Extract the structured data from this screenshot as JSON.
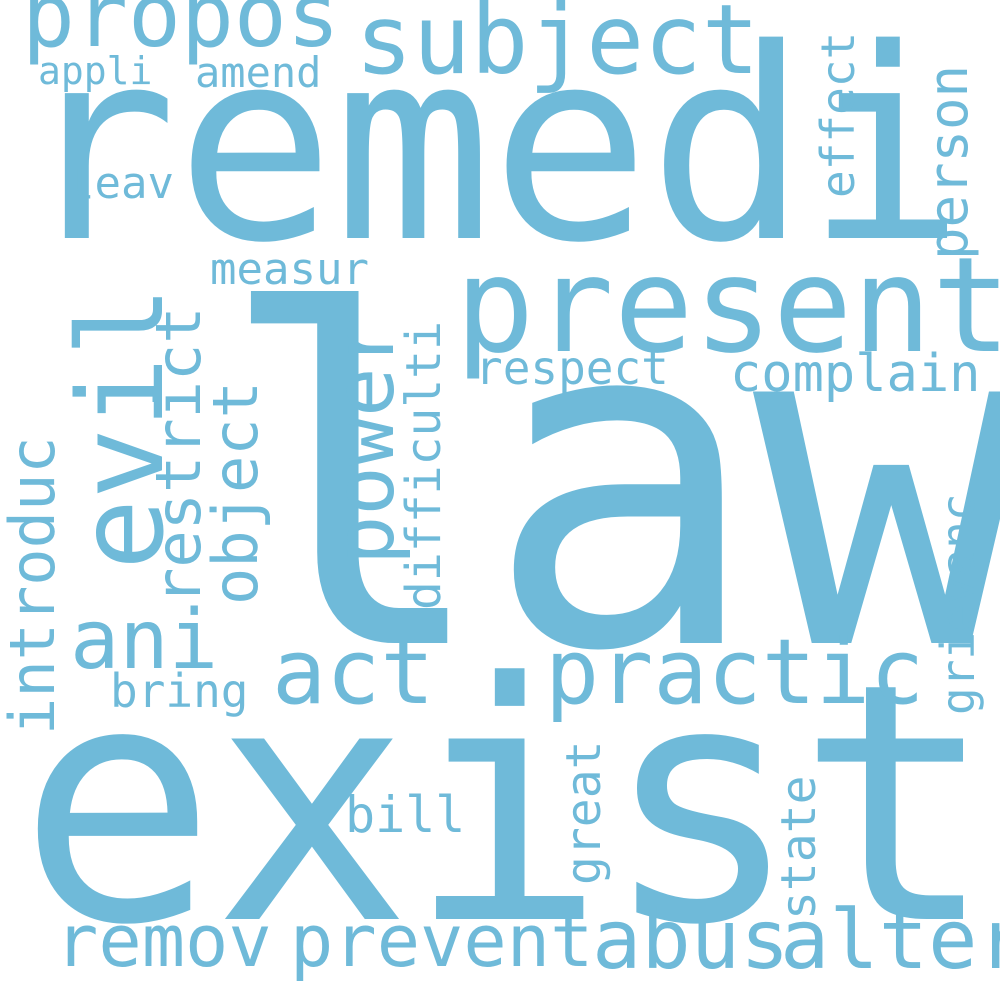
{
  "theme": {
    "word_color": "#6fbad9",
    "background": "#ffffff"
  },
  "words": {
    "law": "law",
    "exist": "exist",
    "remedi": "remedi",
    "present": "present",
    "subject": "subject",
    "propos": "propos",
    "practic": "practic",
    "act": "act",
    "ani": "ani",
    "abus": "abus",
    "alter": "alter",
    "remov": "remov",
    "prevent": "prevent",
    "complain": "complain",
    "respect": "respect",
    "measur": "measur",
    "bill": "bill",
    "bring": "bring",
    "leav": "leav",
    "amend": "amend",
    "appli": "appli",
    "evil": "evil",
    "introduc": "introduc",
    "restrict": "restrict",
    "object": "object",
    "power": "power",
    "difficulti": "difficulti",
    "effect": "effect",
    "person": "person",
    "grievanc": "grievanc",
    "great": "great",
    "state": "state"
  }
}
